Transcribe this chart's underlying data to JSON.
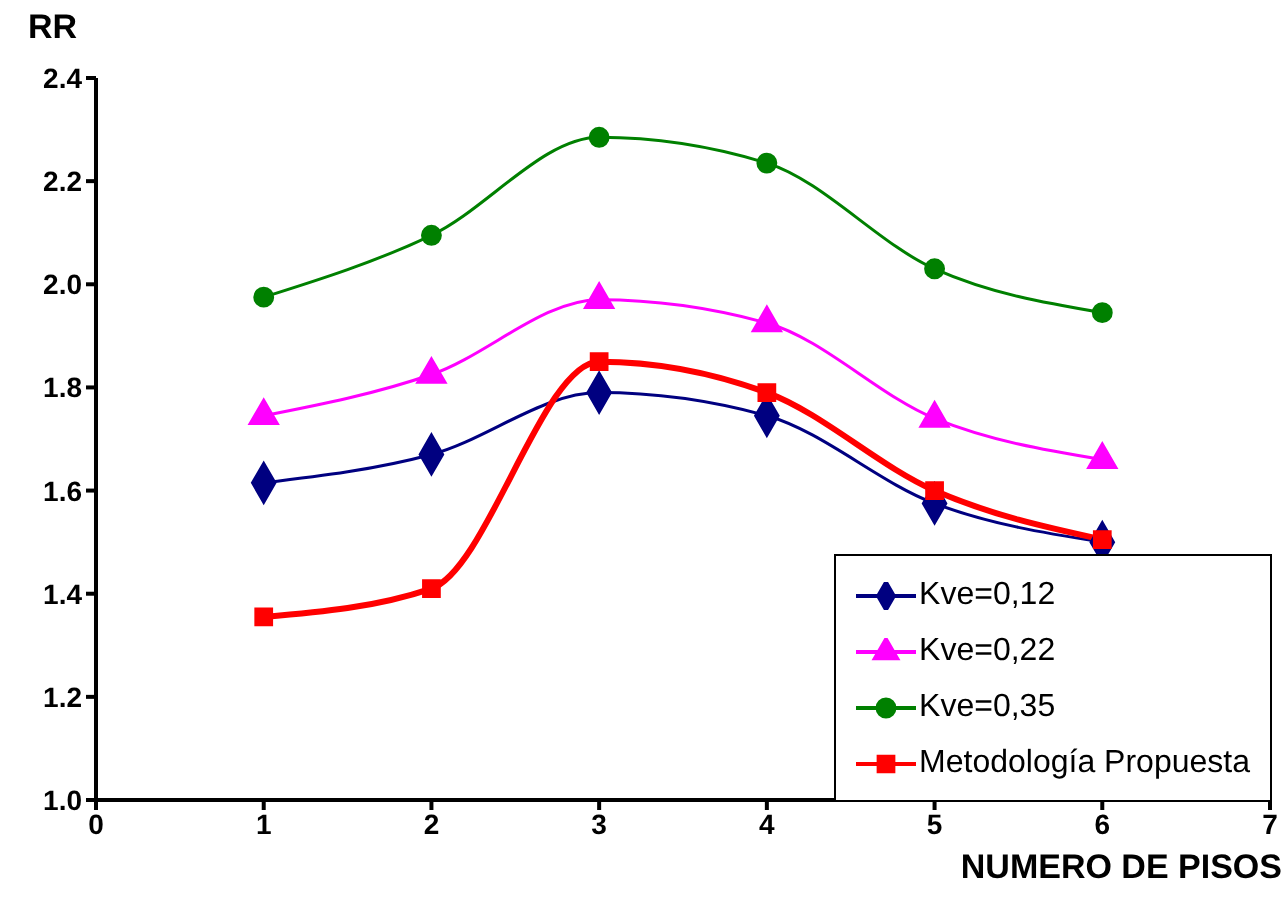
{
  "chart_data": {
    "type": "line",
    "ylabel": "RR",
    "xlabel": "NUMERO DE PISOS",
    "x": [
      1,
      2,
      3,
      4,
      5,
      6
    ],
    "series": [
      {
        "name": "Kve=0,12",
        "color": "#000080",
        "marker": "diamond",
        "values": [
          1.615,
          1.67,
          1.79,
          1.745,
          1.575,
          1.5
        ]
      },
      {
        "name": "Kve=0,22",
        "color": "#ff00ff",
        "marker": "triangle",
        "values": [
          1.745,
          1.825,
          1.97,
          1.925,
          1.74,
          1.66
        ]
      },
      {
        "name": "Kve=0,35",
        "color": "#008000",
        "marker": "circle",
        "values": [
          1.975,
          2.095,
          2.285,
          2.235,
          2.03,
          1.945
        ]
      },
      {
        "name": "Metodología Propuesta",
        "color": "#ff0000",
        "marker": "square",
        "values": [
          1.355,
          1.41,
          1.85,
          1.79,
          1.6,
          1.505
        ]
      }
    ],
    "xlim": [
      0,
      7
    ],
    "xticks": [
      0,
      1,
      2,
      3,
      4,
      5,
      6,
      7
    ],
    "ylim": [
      1.0,
      2.4
    ],
    "yticks": [
      {
        "value": 1.0,
        "label": "1.0"
      },
      {
        "value": 1.2,
        "label": "1.2"
      },
      {
        "value": 1.4,
        "label": "1.4"
      },
      {
        "value": 1.6,
        "label": "1.6"
      },
      {
        "value": 1.8,
        "label": "1.8"
      },
      {
        "value": 2.0,
        "label": "2.0"
      },
      {
        "value": 2.2,
        "label": "2.2"
      },
      {
        "value": 2.4,
        "label": "2.4"
      }
    ],
    "grid": false,
    "legend": "bottom right",
    "line_style": "solid"
  }
}
